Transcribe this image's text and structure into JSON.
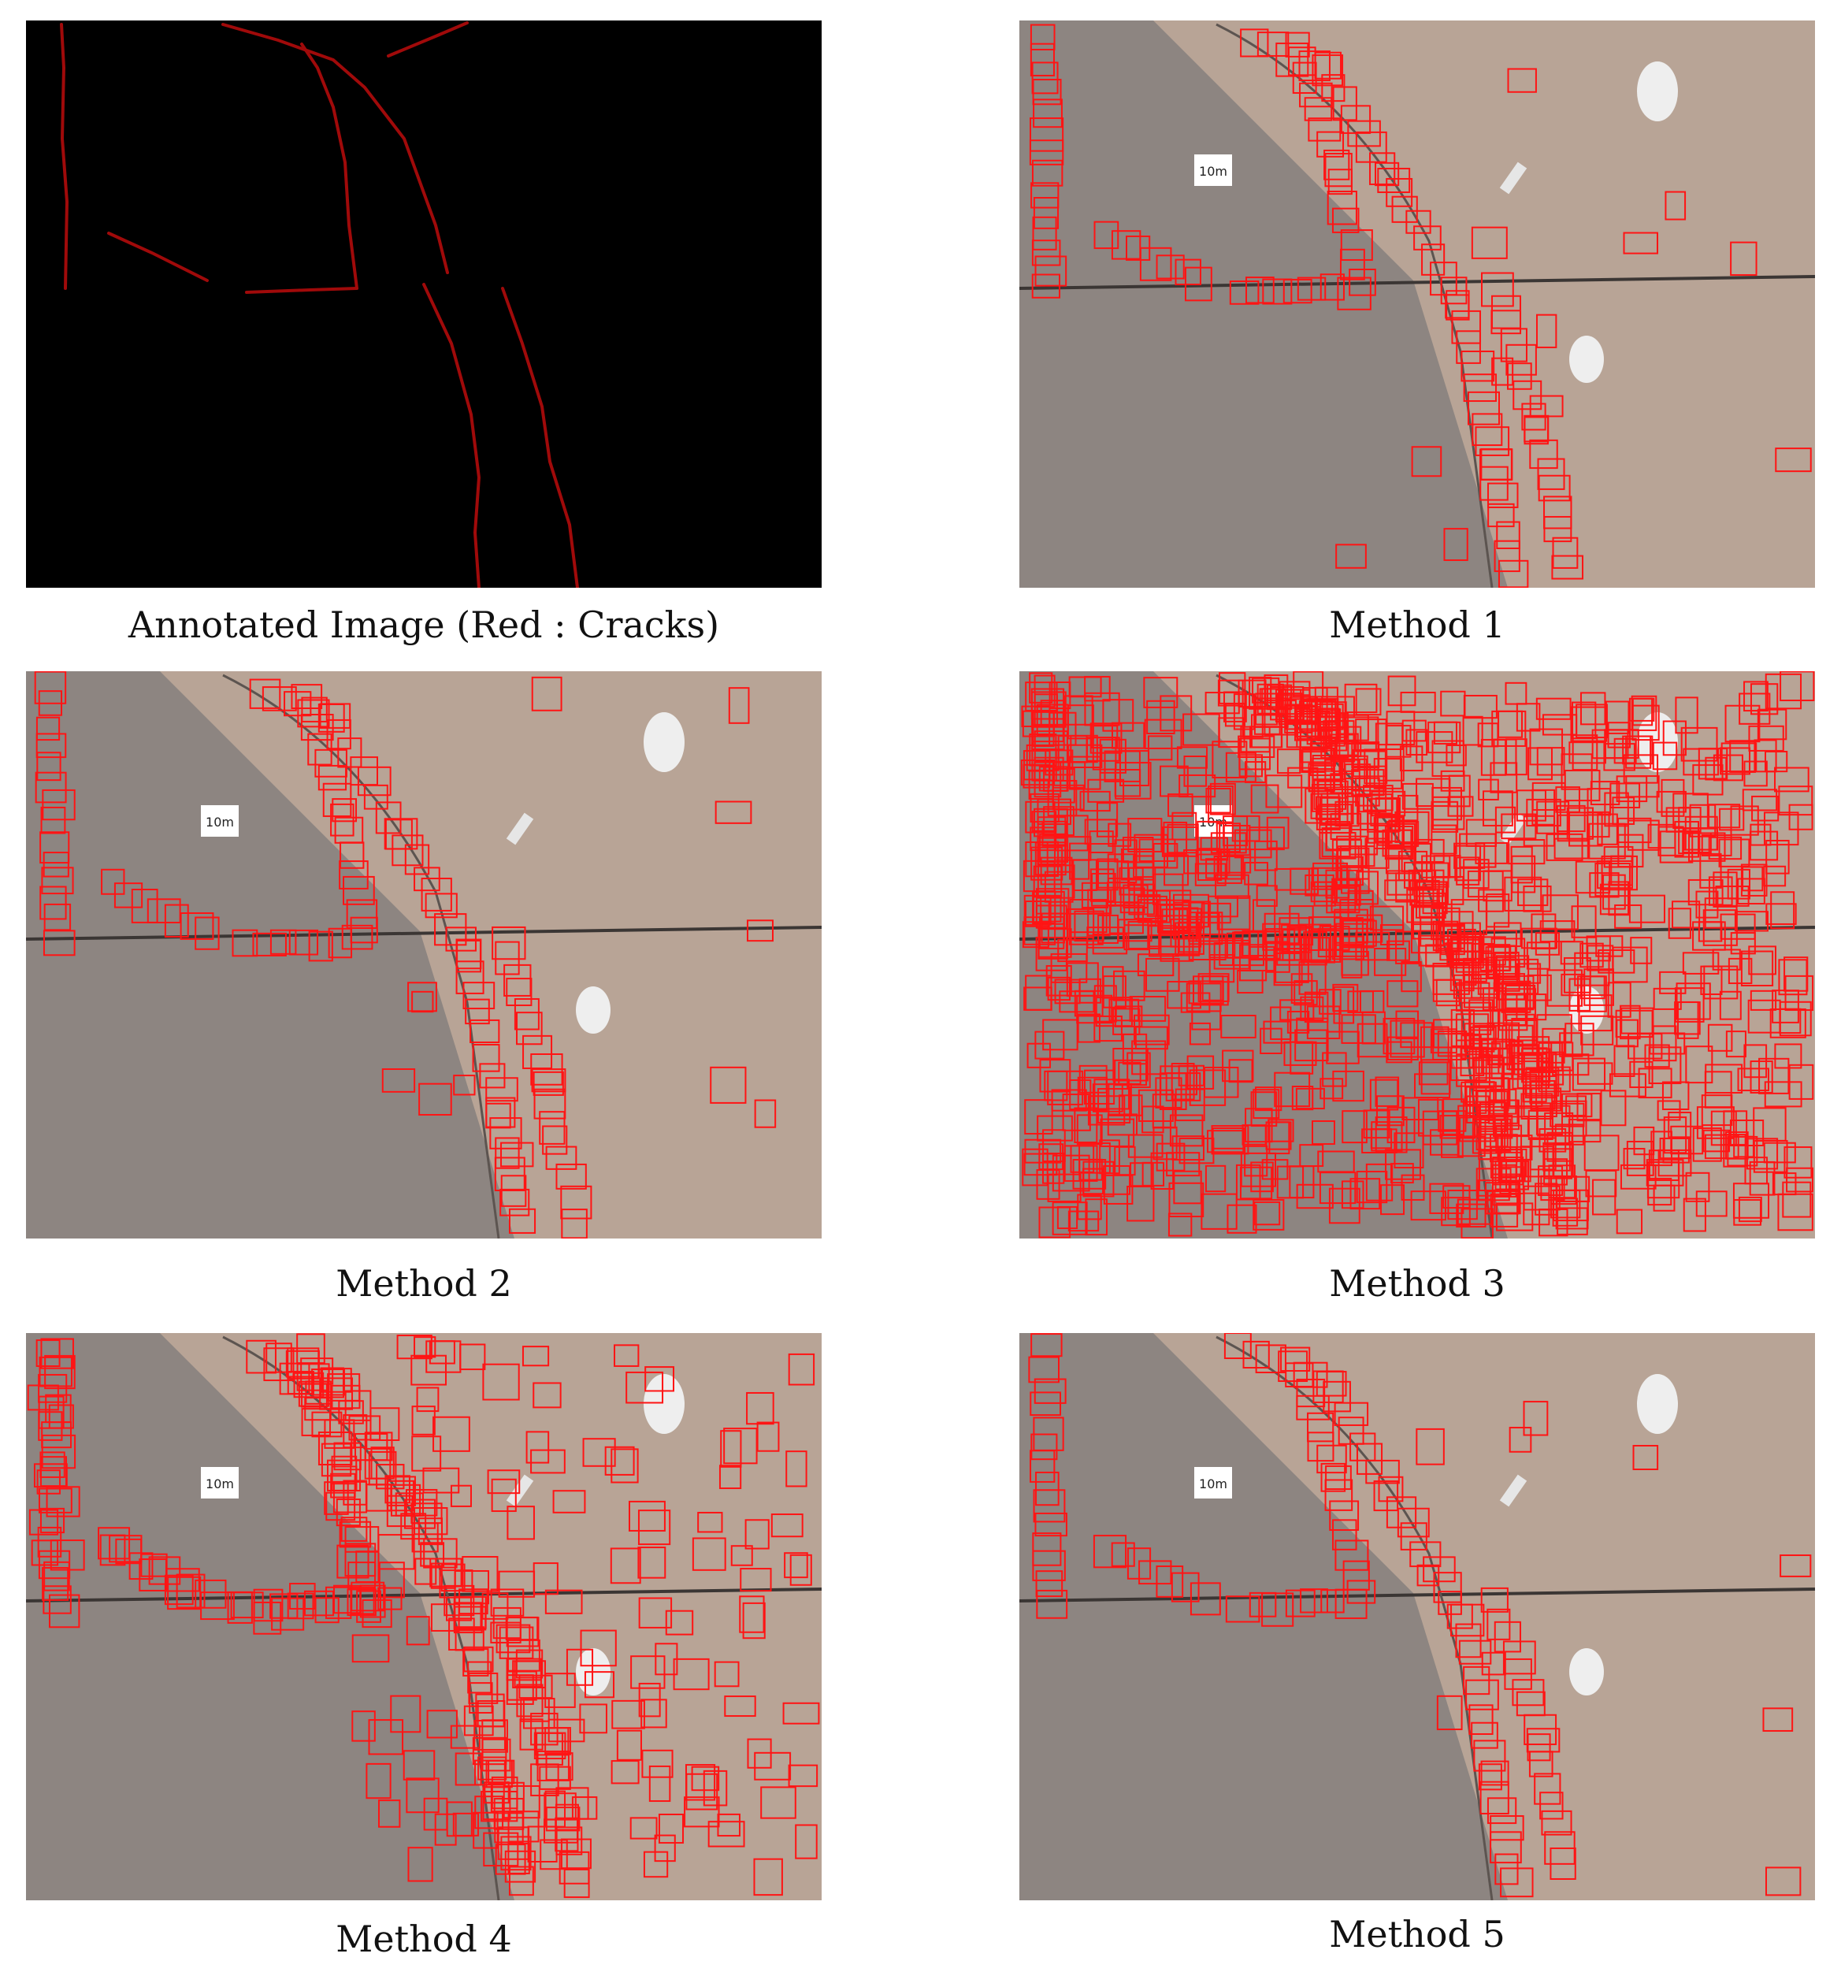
{
  "colors": {
    "crack_annotation": "#a00a0a",
    "detection_box": "#ff1414",
    "pavement_light": "#b8a496",
    "pavement_dark": "#8d8581",
    "mask_background": "#000000"
  },
  "panels": [
    {
      "caption": "Annotated Image (Red : Cracks)"
    },
    {
      "caption": "Method 1",
      "marker_label": "10m",
      "density": 1
    },
    {
      "caption": "Method 2",
      "marker_label": "10m",
      "density": 1
    },
    {
      "caption": "Method 3",
      "marker_label": "10m",
      "density": 3
    },
    {
      "caption": "Method 4",
      "marker_label": "10m",
      "density": 2
    },
    {
      "caption": "Method 5",
      "marker_label": "10m",
      "density": 1
    }
  ]
}
